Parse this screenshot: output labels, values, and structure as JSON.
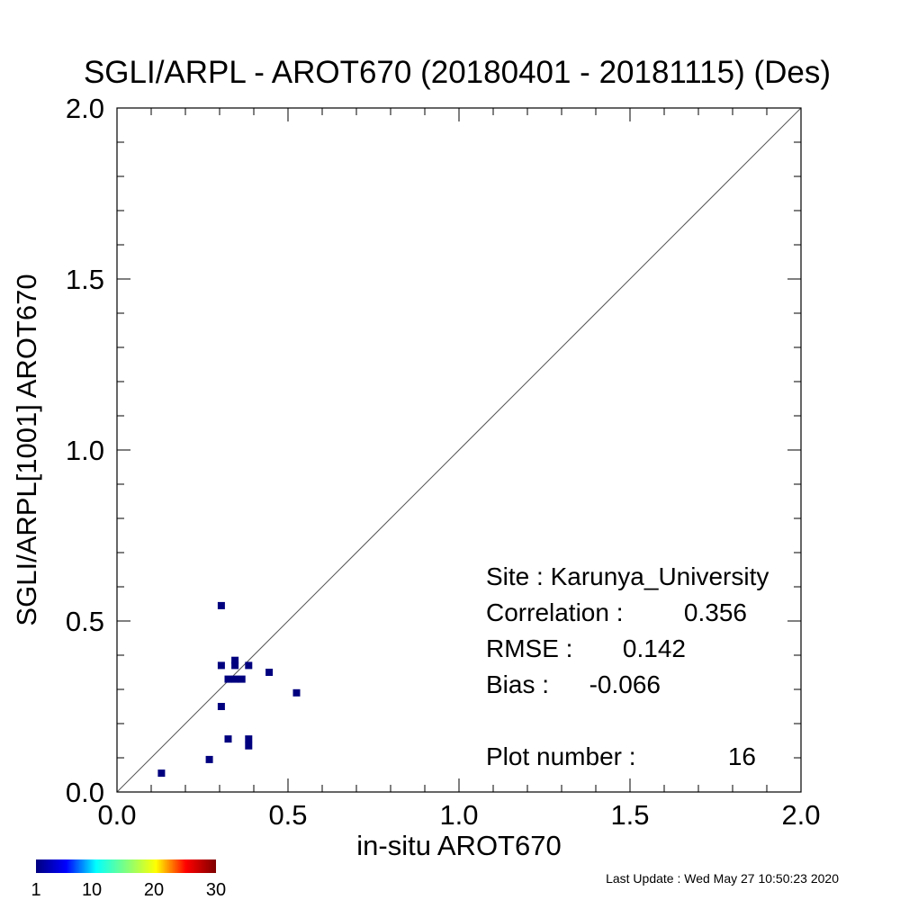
{
  "chart_data": {
    "type": "scatter",
    "title": "SGLI/ARPL - AROT670 (20180401 - 20181115) (Des)",
    "xlabel": "in-situ AROT670",
    "ylabel": "SGLI/ARPL[1001]    AROT670",
    "xlim": [
      0.0,
      2.0
    ],
    "ylim": [
      0.0,
      2.0
    ],
    "x_ticks": [
      "0.0",
      "0.5",
      "1.0",
      "1.5",
      "2.0"
    ],
    "y_ticks": [
      "0.0",
      "0.5",
      "1.0",
      "1.5",
      "2.0"
    ],
    "one_to_one_line": true,
    "grid": false,
    "points": [
      {
        "x": 0.13,
        "y": 0.055,
        "count": 1
      },
      {
        "x": 0.27,
        "y": 0.095,
        "count": 1
      },
      {
        "x": 0.305,
        "y": 0.545,
        "count": 1
      },
      {
        "x": 0.305,
        "y": 0.37,
        "count": 1
      },
      {
        "x": 0.305,
        "y": 0.25,
        "count": 1
      },
      {
        "x": 0.325,
        "y": 0.155,
        "count": 1
      },
      {
        "x": 0.325,
        "y": 0.33,
        "count": 1
      },
      {
        "x": 0.345,
        "y": 0.385,
        "count": 1
      },
      {
        "x": 0.345,
        "y": 0.37,
        "count": 1
      },
      {
        "x": 0.345,
        "y": 0.33,
        "count": 1
      },
      {
        "x": 0.365,
        "y": 0.33,
        "count": 1
      },
      {
        "x": 0.385,
        "y": 0.37,
        "count": 1
      },
      {
        "x": 0.385,
        "y": 0.155,
        "count": 1
      },
      {
        "x": 0.385,
        "y": 0.135,
        "count": 1
      },
      {
        "x": 0.445,
        "y": 0.35,
        "count": 1
      },
      {
        "x": 0.525,
        "y": 0.29,
        "count": 1
      }
    ],
    "stats": [
      {
        "label": "Site : Karunya_University",
        "value": ""
      },
      {
        "label": "Correlation :",
        "value": "0.356"
      },
      {
        "label": "RMSE :",
        "value": "0.142"
      },
      {
        "label": "Bias :",
        "value": "-0.066"
      },
      {
        "label": "Plot number :",
        "value": "16"
      }
    ],
    "colorbar": {
      "ticks": [
        "1",
        "10",
        "20",
        "30"
      ],
      "range": [
        1,
        30
      ],
      "colors": [
        "#00007f",
        "#0000ff",
        "#00ffff",
        "#7fff7f",
        "#ffff00",
        "#ff0000",
        "#7f0000"
      ]
    }
  },
  "footer": {
    "last_update": "Last Update : Wed May 27 10:50:23 2020"
  }
}
